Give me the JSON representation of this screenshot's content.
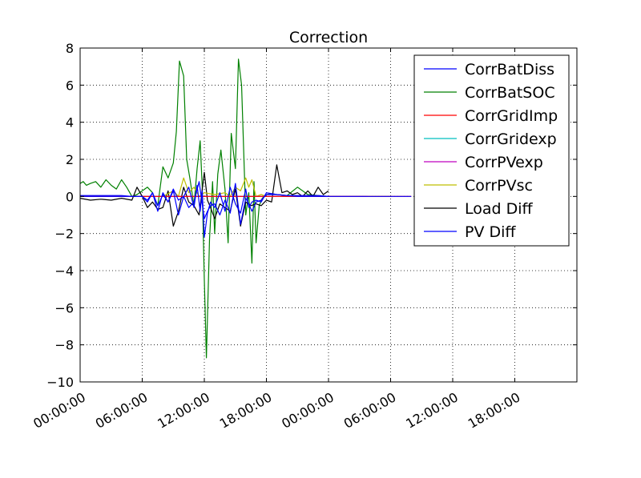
{
  "chart_data": {
    "type": "line",
    "title": "Correction",
    "xlabel": "",
    "ylabel": "",
    "grid": true,
    "legend_position": "top-right",
    "ylim": [
      -10,
      8
    ],
    "yticks": [
      8,
      6,
      4,
      2,
      0,
      -2,
      -4,
      -6,
      -8,
      -10
    ],
    "ytick_labels": [
      "8",
      "6",
      "4",
      "2",
      "0",
      "−2",
      "−4",
      "−6",
      "−8",
      "−10"
    ],
    "xlim_hours": [
      0,
      48
    ],
    "xticks_hours": [
      0,
      6,
      12,
      18,
      24,
      30,
      36,
      42
    ],
    "xtick_labels": [
      "00:00:00",
      "06:00:00",
      "12:00:00",
      "18:00:00",
      "00:00:00",
      "06:00:00",
      "12:00:00",
      "18:00:00"
    ],
    "series": [
      {
        "name": "CorrBatDiss",
        "color": "#0000ff",
        "x": [
          0,
          0.5,
          1,
          2,
          3,
          4,
          5,
          6,
          6.5,
          7,
          7.5,
          8,
          8.5,
          9,
          9.5,
          10,
          10.5,
          11,
          11.3,
          11.6,
          11.8,
          12,
          12.3,
          12.6,
          13,
          13.5,
          14,
          14.5,
          15,
          15.5,
          16,
          16.3,
          16.6,
          17,
          17.5,
          18,
          19,
          20,
          21,
          22,
          23,
          24
        ],
        "values": [
          0.05,
          0.05,
          0.05,
          0.05,
          0.05,
          0.05,
          0,
          0,
          -0.3,
          0.2,
          -0.5,
          0.1,
          -0.3,
          0.4,
          -0.2,
          0,
          0.5,
          -0.6,
          0.6,
          -0.8,
          0.3,
          -2.2,
          -0.9,
          -0.3,
          -0.6,
          0.2,
          -0.8,
          0.5,
          -0.4,
          -0.9,
          0.4,
          -0.6,
          -0.3,
          -0.2,
          -0.3,
          0.2,
          0.1,
          0.05,
          0.05,
          0.05,
          0.05,
          0
        ]
      },
      {
        "name": "CorrBatSOC",
        "color": "#008000",
        "x": [
          0,
          0.3,
          0.6,
          1,
          1.5,
          2,
          2.5,
          3,
          3.5,
          4,
          4.5,
          5,
          5.5,
          6,
          6.5,
          7,
          7.5,
          8,
          8.5,
          9,
          9.3,
          9.6,
          10,
          10.3,
          10.6,
          11,
          11.3,
          11.6,
          11.8,
          12,
          12.2,
          12.5,
          12.8,
          13,
          13.3,
          13.6,
          14,
          14.3,
          14.6,
          15,
          15.3,
          15.6,
          16,
          16.3,
          16.6,
          16.8,
          17,
          17.3,
          17.6,
          18,
          18.5,
          19,
          20,
          21,
          22,
          23,
          24
        ],
        "values": [
          0.7,
          0.8,
          0.6,
          0.7,
          0.8,
          0.5,
          0.9,
          0.6,
          0.4,
          0.9,
          0.5,
          0,
          0.1,
          0.3,
          0.5,
          0.2,
          -0.5,
          1.6,
          1,
          1.8,
          3.5,
          7.3,
          6.5,
          2,
          1,
          -0.5,
          1.5,
          3,
          0.5,
          -4.5,
          -8.7,
          -2.3,
          0.8,
          -2,
          1.2,
          2.5,
          0.4,
          -2.5,
          3.4,
          1.5,
          7.4,
          6,
          -1,
          0.2,
          -3.6,
          0.8,
          -2.5,
          -0.5,
          -0.1,
          0.1,
          0.15,
          0.1,
          0.05,
          0.5,
          0.1,
          0.05,
          0
        ]
      },
      {
        "name": "CorrGridImp",
        "color": "#ff0000",
        "x": [
          0,
          6,
          9,
          12,
          15,
          18,
          21,
          24,
          24.5,
          27.5,
          28.5,
          30,
          31,
          32
        ],
        "values": [
          0,
          0,
          0,
          0,
          0,
          0,
          0,
          0,
          0,
          0,
          0,
          0,
          0,
          0
        ]
      },
      {
        "name": "CorrGridexp",
        "color": "#00bfbf",
        "x": [
          0,
          6,
          12,
          18,
          24,
          26,
          27.5
        ],
        "values": [
          0,
          0,
          0,
          0,
          0,
          0,
          0
        ]
      },
      {
        "name": "CorrPVexp",
        "color": "#bf00bf",
        "x": [
          0,
          6,
          12,
          18,
          24,
          24.6,
          25.6,
          27.8
        ],
        "values": [
          0,
          0,
          0,
          0,
          0,
          0,
          0,
          0
        ]
      },
      {
        "name": "CorrPVsc",
        "color": "#bfbf00",
        "x": [
          0,
          6,
          8,
          9,
          9.5,
          10,
          10.5,
          11,
          11.5,
          12,
          13,
          14,
          14.5,
          15,
          15.5,
          16,
          16.3,
          16.6,
          17,
          17.5,
          18,
          24,
          25,
          28,
          30
        ],
        "values": [
          0,
          0,
          0,
          0.3,
          0,
          1,
          0.2,
          0.5,
          0,
          0.2,
          0.1,
          0.2,
          0,
          0.5,
          0.3,
          1,
          0.5,
          0.9,
          0,
          0.1,
          0,
          0,
          0,
          0,
          0
        ]
      },
      {
        "name": "Load Diff",
        "color": "#000000",
        "x": [
          0,
          1,
          2,
          3,
          4,
          5,
          5.5,
          6,
          6.5,
          7,
          7.5,
          8,
          8.5,
          9,
          9.5,
          10,
          10.5,
          11,
          11.5,
          12,
          12.3,
          12.6,
          13,
          13.5,
          14,
          14.5,
          15,
          15.5,
          16,
          16.5,
          17,
          17.5,
          18,
          18.5,
          19,
          19.5,
          20,
          20.5,
          21,
          21.5,
          22,
          22.5,
          23,
          23.5,
          24
        ],
        "values": [
          -0.1,
          -0.2,
          -0.15,
          -0.2,
          -0.1,
          -0.2,
          0.5,
          0,
          -0.6,
          -0.3,
          -0.7,
          -0.6,
          0.3,
          -1.6,
          -0.8,
          0.5,
          -0.3,
          -0.5,
          -1,
          1.3,
          -0.2,
          -0.6,
          -1.2,
          -0.4,
          -0.6,
          -0.8,
          0.4,
          -1.6,
          -0.3,
          -0.5,
          -0.4,
          -0.5,
          -0.2,
          -0.3,
          1.7,
          0.2,
          0.3,
          0.1,
          0.2,
          0,
          0.3,
          0,
          0.5,
          0.1,
          0.3
        ]
      },
      {
        "name": "PV Diff",
        "color": "#0000ff",
        "x": [
          0,
          1,
          2,
          3,
          4,
          5,
          5.5,
          6,
          6.5,
          7,
          7.5,
          8,
          8.5,
          9,
          9.5,
          10,
          10.5,
          11,
          11.5,
          12,
          12.3,
          12.6,
          13,
          13.5,
          14,
          14.5,
          15,
          15.5,
          16,
          16.3,
          16.6,
          17,
          17.5,
          18,
          19,
          20,
          21,
          22,
          23,
          24,
          24.5,
          27.5,
          28.5,
          30,
          31,
          32
        ],
        "values": [
          0,
          0,
          0,
          0,
          0,
          0,
          0,
          0,
          -0.2,
          0.2,
          -0.8,
          0.2,
          -0.3,
          0.3,
          -1,
          0,
          -0.6,
          -0.3,
          0.8,
          -1.2,
          -0.8,
          -0.5,
          -0.4,
          -1,
          -0.2,
          -0.9,
          0.7,
          -1.5,
          -0.1,
          -0.4,
          -0.8,
          -0.3,
          -0.2,
          0.1,
          0.1,
          0.05,
          0,
          0,
          0,
          0,
          0,
          0,
          0,
          0,
          0,
          0
        ]
      }
    ]
  }
}
